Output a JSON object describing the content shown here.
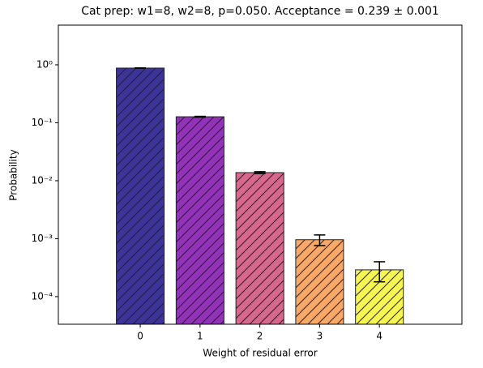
{
  "chart_data": {
    "type": "bar",
    "title": "Cat prep: w1=8, w2=8, p=0.050. Acceptance = 0.239 ± 0.001",
    "x_label": "Weight of residual error",
    "y_label": "Probability",
    "x": [
      0,
      1,
      2,
      3,
      4
    ],
    "values": [
      0.879,
      0.127,
      0.0138,
      0.00096,
      0.00029
    ],
    "errors": [
      0.005,
      0.002,
      0.0005,
      0.0002,
      0.00011
    ],
    "colors": [
      "#3d3399",
      "#9132b8",
      "#d6688e",
      "#f9a866",
      "#f6f552"
    ],
    "xlim": [
      -1.37,
      5.38
    ],
    "xticks": [
      0,
      1,
      2,
      3,
      4
    ],
    "ylim": [
      3.34e-05,
      4.84
    ],
    "y_scale": "log",
    "yticks": [
      {
        "value": 1,
        "label": "10⁰"
      },
      {
        "value": 0.1,
        "label": "10⁻¹"
      },
      {
        "value": 0.01,
        "label": "10⁻²"
      },
      {
        "value": 0.001,
        "label": "10⁻³"
      },
      {
        "value": 0.0001,
        "label": "10⁻⁴"
      }
    ],
    "grid": false
  }
}
